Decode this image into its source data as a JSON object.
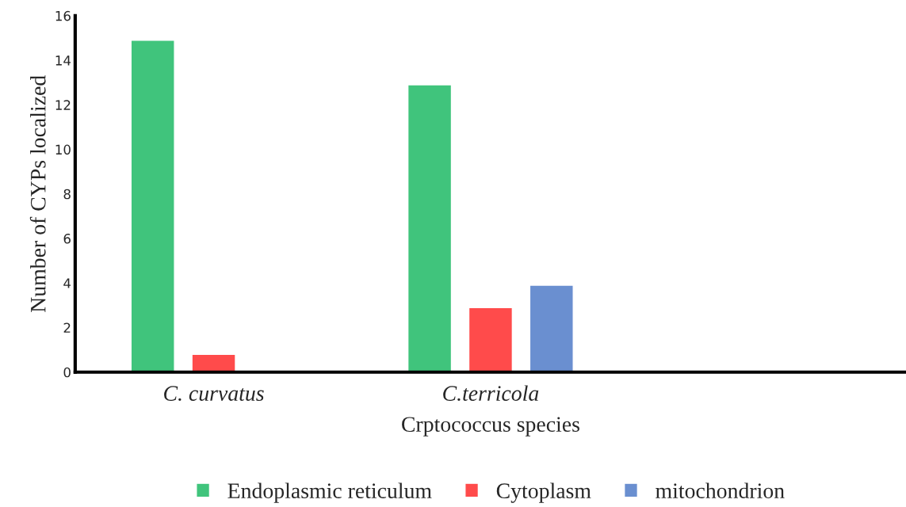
{
  "chart_data": {
    "type": "bar",
    "xlabel": "Crptococcus species",
    "ylabel": "Number of CYPs localized",
    "categories": [
      "C. curvatus",
      "C.terricola",
      null
    ],
    "series": [
      {
        "name": "Endoplasmic reticulum",
        "color": "#40c47c",
        "values": [
          14.9,
          12.9,
          null
        ]
      },
      {
        "name": "Cytoplasm",
        "color": "#ff4b4b",
        "values": [
          0.8,
          2.9,
          null
        ]
      },
      {
        "name": "mitochondrion",
        "color": "#6a8fd0",
        "values": [
          null,
          3.9,
          null
        ]
      }
    ],
    "ylim": [
      0,
      16
    ],
    "yticks": [
      0,
      2,
      4,
      6,
      8,
      10,
      12,
      14,
      16
    ],
    "grid": false,
    "legend": "bottom"
  }
}
